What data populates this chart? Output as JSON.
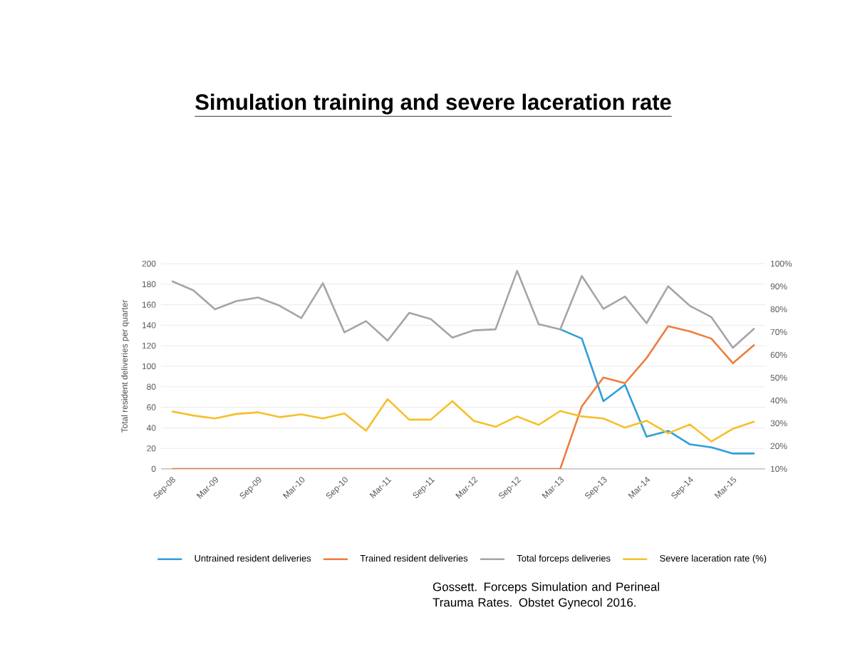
{
  "chart_data": {
    "type": "line",
    "title": "**Simulation training and severe laceration rate**",
    "ylabel": "Total resident deliveries per quarter",
    "categories": [
      "Sep-08",
      null,
      "Mar-09",
      null,
      "Sep-09",
      null,
      "Mar-10",
      null,
      "Sep-10",
      null,
      "Mar-11",
      null,
      "Sep-11",
      null,
      "Mar-12",
      null,
      "Sep-12",
      null,
      "Mar-13",
      null,
      "Sep-13",
      null,
      "Mar-14",
      null,
      "Sep-14",
      null,
      "Mar-15",
      null
    ],
    "series": [
      {
        "name": "Untrained resident deliveries",
        "color": "#2e9fd8",
        "values": [
          null,
          null,
          null,
          null,
          null,
          null,
          null,
          null,
          null,
          null,
          null,
          null,
          null,
          null,
          null,
          null,
          null,
          null,
          136,
          127,
          66,
          82,
          31.5,
          37,
          24,
          21,
          15,
          15
        ]
      },
      {
        "name": "Trained resident deliveries",
        "color": "#ee7d3b",
        "values": [
          0,
          0,
          0,
          0,
          0,
          0,
          0,
          0,
          0,
          0,
          0,
          0,
          0,
          0,
          0,
          0,
          0,
          0,
          0,
          61,
          89,
          83.5,
          108,
          139,
          134,
          127,
          103,
          121
        ]
      },
      {
        "name": "Total forceps deliveries",
        "color": "#a5a5a5",
        "values": [
          183,
          174,
          155.5,
          163.5,
          167,
          159,
          147,
          181,
          133,
          144,
          125,
          152,
          146,
          128,
          135,
          136,
          193,
          141,
          136,
          188,
          156,
          168,
          142,
          178,
          159,
          148,
          118,
          137
        ]
      },
      {
        "name": "Severe laceration rate (%)",
        "color": "#f5c02a",
        "axis": "y2",
        "values": [
          35.2,
          33.4,
          32.1,
          34.1,
          34.8,
          32.7,
          33.9,
          32.1,
          34.3,
          26.7,
          40.6,
          31.6,
          31.6,
          39.7,
          31,
          28.5,
          33,
          29.3,
          35.4,
          33,
          32.1,
          28.1,
          31.1,
          25.6,
          29.5,
          22,
          27.6,
          30.8
        ]
      }
    ],
    "ylim": [
      0,
      200
    ],
    "yticks": [
      0,
      20,
      40,
      60,
      80,
      100,
      120,
      140,
      160,
      180,
      200
    ],
    "y2lim": [
      10,
      100
    ],
    "y2ticks": [
      {
        "value": 10,
        "label": "10%"
      },
      {
        "value": 20,
        "label": "20%"
      },
      {
        "value": 30,
        "label": "30%"
      },
      {
        "value": 40,
        "label": "40%"
      },
      {
        "value": 50,
        "label": "50%"
      },
      {
        "value": 60,
        "label": "60%"
      },
      {
        "value": 70,
        "label": "70%"
      },
      {
        "value": 80,
        "label": "80%"
      },
      {
        "value": 90,
        "label": "90%"
      },
      {
        "value": 100,
        "label": "100%"
      }
    ],
    "grid": "y",
    "legend": "bottom",
    "marker": "none",
    "line_style": "solid",
    "annotations": [
      "Gossett. Forceps Simulation and Perineal Trauma Rates. Obstet Gynecol 2016."
    ]
  }
}
